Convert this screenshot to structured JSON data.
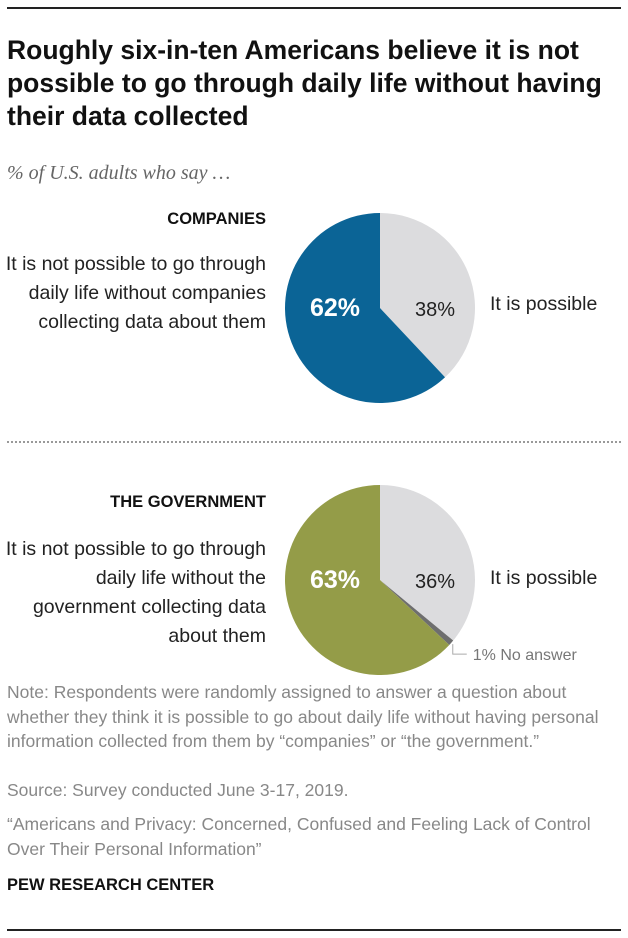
{
  "title": "Roughly six-in-ten Americans believe it is not possible to go through daily life without having their data collected",
  "subtitle": "% of U.S. adults who say …",
  "chart_data": [
    {
      "type": "pie",
      "title": "COMPANIES",
      "slices": [
        {
          "label": "It is possible",
          "value": 38,
          "display": "38%",
          "color": "#dcdcde"
        },
        {
          "label": "It is not possible to go through daily life without companies collecting data about them",
          "value": 62,
          "display": "62%",
          "color": "#0b6496"
        }
      ]
    },
    {
      "type": "pie",
      "title": "THE GOVERNMENT",
      "slices": [
        {
          "label": "It is possible",
          "value": 36,
          "display": "36%",
          "color": "#dcdcde"
        },
        {
          "label": "No answer",
          "value": 1,
          "display": "1% No answer",
          "color": "#6e6e6e"
        },
        {
          "label": "It is not possible to go through daily life without the government collecting data about them",
          "value": 63,
          "display": "63%",
          "color": "#949c48"
        }
      ]
    }
  ],
  "note": "Note: Respondents were randomly assigned to answer a question about whether they think it is possible to go about daily life without having personal information collected from them by “companies” or “the government.”",
  "source": "Source: Survey conducted June 3-17, 2019.",
  "report": "“Americans and Privacy: Concerned, Confused and Feeling Lack of Control Over Their Personal Information”",
  "org": "PEW RESEARCH CENTER"
}
